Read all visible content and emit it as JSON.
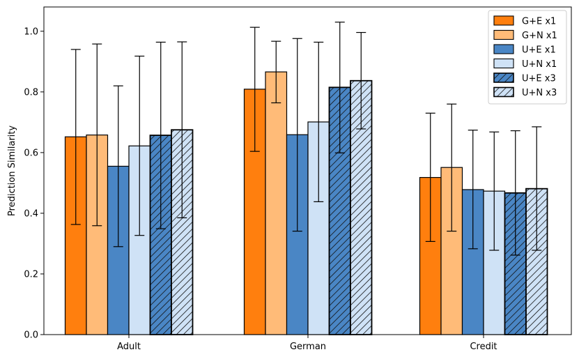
{
  "chart_data": {
    "type": "bar",
    "categories": [
      "Adult",
      "German",
      "Credit"
    ],
    "ylabel": "Prediction Similarity",
    "ylim": [
      0,
      1.08
    ],
    "yticks": [
      0.0,
      0.2,
      0.4,
      0.6,
      0.8,
      1.0
    ],
    "ytick_labels": [
      "0.0",
      "0.2",
      "0.4",
      "0.6",
      "0.8",
      "1.0"
    ],
    "grid": false,
    "legend_position": "top-right",
    "series": [
      {
        "name": "G+E x1",
        "color": "#ff7f0e",
        "hatch": false,
        "values": [
          0.652,
          0.809,
          0.518
        ],
        "err_low": [
          0.363,
          0.604,
          0.307
        ],
        "err_high": [
          0.94,
          1.013,
          0.73
        ]
      },
      {
        "name": "G+N x1",
        "color": "#ffbb78",
        "hatch": false,
        "values": [
          0.658,
          0.866,
          0.551
        ],
        "err_low": [
          0.359,
          0.764,
          0.341
        ],
        "err_high": [
          0.958,
          0.967,
          0.76
        ]
      },
      {
        "name": "U+E x1",
        "color": "#4a86c5",
        "hatch": false,
        "values": [
          0.555,
          0.659,
          0.478
        ],
        "err_low": [
          0.29,
          0.341,
          0.283
        ],
        "err_high": [
          0.82,
          0.976,
          0.674
        ]
      },
      {
        "name": "U+N x1",
        "color": "#cfe2f6",
        "hatch": false,
        "values": [
          0.622,
          0.701,
          0.473
        ],
        "err_low": [
          0.327,
          0.438,
          0.278
        ],
        "err_high": [
          0.918,
          0.964,
          0.668
        ]
      },
      {
        "name": "U+E x3",
        "color": "#4a86c5",
        "hatch": true,
        "values": [
          0.657,
          0.815,
          0.467
        ],
        "err_low": [
          0.349,
          0.599,
          0.262
        ],
        "err_high": [
          0.964,
          1.03,
          0.672
        ]
      },
      {
        "name": "U+N x3",
        "color": "#cfe2f6",
        "hatch": true,
        "values": [
          0.675,
          0.837,
          0.481
        ],
        "err_low": [
          0.385,
          0.678,
          0.278
        ],
        "err_high": [
          0.965,
          0.996,
          0.685
        ]
      }
    ]
  }
}
